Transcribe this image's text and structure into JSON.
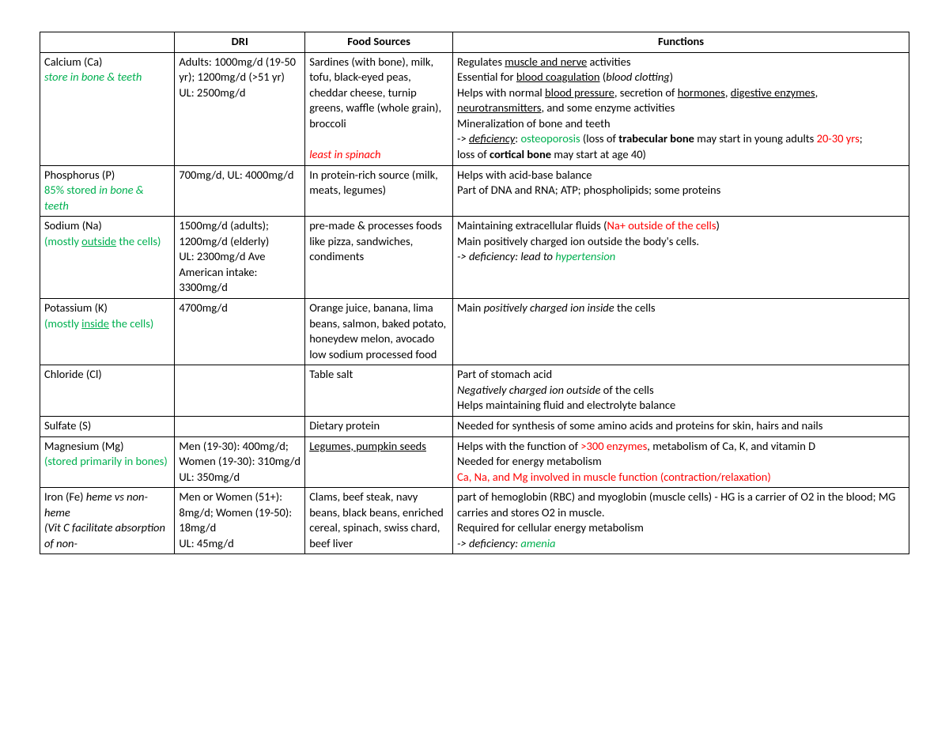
{
  "table": {
    "columns": [
      "",
      "DRI",
      "Food Sources",
      "Functions"
    ],
    "column_widths_pct": [
      15.5,
      15,
      17,
      52.5
    ],
    "border_color": "#000000",
    "font_family": "Calibri",
    "font_size_pt": 11,
    "colors": {
      "green": "#00b050",
      "red": "#ff0000",
      "black": "#000000"
    },
    "rows": [
      {
        "mineral": [
          {
            "t": "Calcium (Ca)"
          },
          {
            "br": true
          },
          {
            "t": "store in bone & teeth",
            "cls": "green i"
          }
        ],
        "dri": [
          {
            "t": "Adults: 1000mg/d (19-50 yr); 1200mg/d (>51 yr)"
          },
          {
            "br": true
          },
          {
            "t": "UL: 2500mg/d"
          }
        ],
        "sources": [
          {
            "t": "Sardines (with bone), milk, tofu, black-eyed peas, cheddar cheese, turnip greens, waffle (whole grain), broccoli"
          },
          {
            "br": true
          },
          {
            "br": true
          },
          {
            "t": "least in spinach",
            "cls": "red i"
          }
        ],
        "functions": [
          {
            "t": "Regulates "
          },
          {
            "t": "muscle and nerve",
            "cls": "u"
          },
          {
            "t": " activities"
          },
          {
            "br": true
          },
          {
            "t": "Essential for "
          },
          {
            "t": "blood coagulation",
            "cls": "u"
          },
          {
            "t": " ("
          },
          {
            "t": "blood clotting",
            "cls": "i"
          },
          {
            "t": ")"
          },
          {
            "br": true
          },
          {
            "t": "Helps with normal "
          },
          {
            "t": "blood pressure",
            "cls": "u"
          },
          {
            "t": ", secretion of "
          },
          {
            "t": "hormones",
            "cls": "u"
          },
          {
            "t": ", "
          },
          {
            "t": "digestive enzymes",
            "cls": "u"
          },
          {
            "t": ", "
          },
          {
            "t": "neurotransmitters",
            "cls": "u"
          },
          {
            "t": ", and some enzyme activities"
          },
          {
            "br": true
          },
          {
            "t": "Mineralization of bone and teeth"
          },
          {
            "br": true
          },
          {
            "t": "-> "
          },
          {
            "t": "deficiency",
            "cls": "ui"
          },
          {
            "t": ": "
          },
          {
            "t": "osteoporosis",
            "cls": "green"
          },
          {
            "t": " (loss of "
          },
          {
            "t": "trabecular bone",
            "cls": "b"
          },
          {
            "t": " may start in young adults "
          },
          {
            "t": "20-30 yrs",
            "cls": "red"
          },
          {
            "t": ";"
          },
          {
            "br": true
          },
          {
            "t": "loss of "
          },
          {
            "t": "cortical bone",
            "cls": "b"
          },
          {
            "t": " may start at age 40)"
          }
        ]
      },
      {
        "mineral": [
          {
            "t": "Phosphorus (P)"
          },
          {
            "br": true
          },
          {
            "t": "85% stored ",
            "cls": "green"
          },
          {
            "t": "in bone & teeth",
            "cls": "green i"
          }
        ],
        "dri": [
          {
            "t": "700mg/d, UL: 4000mg/d"
          }
        ],
        "sources": [
          {
            "t": "In protein-rich source (milk, meats, legumes)"
          }
        ],
        "functions": [
          {
            "t": "Helps with acid-base balance"
          },
          {
            "br": true
          },
          {
            "t": "Part of DNA and RNA; ATP; phospholipids; some proteins"
          }
        ]
      },
      {
        "mineral": [
          {
            "t": "Sodium (Na)"
          },
          {
            "br": true
          },
          {
            "t": "(mostly ",
            "cls": "green"
          },
          {
            "t": "outside",
            "cls": "green u"
          },
          {
            "t": " the cells)",
            "cls": "green"
          }
        ],
        "dri": [
          {
            "t": "1500mg/d (adults); 1200mg/d (elderly)"
          },
          {
            "br": true
          },
          {
            "t": "UL: 2300mg/d    Ave American intake: 3300mg/d"
          }
        ],
        "sources": [
          {
            "t": "pre-made & processes foods like pizza, sandwiches, condiments"
          }
        ],
        "functions": [
          {
            "t": "Maintaining extracellular fluids ("
          },
          {
            "t": "Na+ outside of the cells",
            "cls": "red"
          },
          {
            "t": ")"
          },
          {
            "br": true
          },
          {
            "t": "Main positively charged ion outside the body's cells."
          },
          {
            "br": true
          },
          {
            "t": "-> deficiency:  lead to ",
            "cls": "i"
          },
          {
            "t": "hypertension",
            "cls": "green i"
          }
        ]
      },
      {
        "mineral": [
          {
            "t": "Potassium (K)"
          },
          {
            "br": true
          },
          {
            "t": "(mostly ",
            "cls": "green"
          },
          {
            "t": "inside",
            "cls": "green u"
          },
          {
            "t": " the cells)",
            "cls": "green"
          }
        ],
        "dri": [
          {
            "t": "4700mg/d"
          }
        ],
        "sources": [
          {
            "t": "Orange juice, banana, lima beans, salmon, baked potato, honeydew melon, avocado"
          },
          {
            "br": true
          },
          {
            "t": "low sodium processed food"
          }
        ],
        "functions": [
          {
            "t": "Main "
          },
          {
            "t": "positively charged ion inside",
            "cls": "i"
          },
          {
            "t": " the cells"
          }
        ]
      },
      {
        "mineral": [
          {
            "t": "Chloride (Cl)"
          }
        ],
        "dri": [],
        "sources": [
          {
            "t": "Table salt"
          }
        ],
        "functions": [
          {
            "t": "Part of stomach acid"
          },
          {
            "br": true
          },
          {
            "t": "Negatively charged ion outside",
            "cls": "i"
          },
          {
            "t": " of the cells"
          },
          {
            "br": true
          },
          {
            "t": "Helps maintaining fluid and electrolyte balance"
          }
        ]
      },
      {
        "mineral": [
          {
            "t": "Sulfate (S)"
          }
        ],
        "dri": [],
        "sources": [
          {
            "t": "Dietary protein"
          }
        ],
        "functions": [
          {
            "t": "Needed for synthesis of some amino acids and proteins for skin, hairs and nails"
          }
        ]
      },
      {
        "mineral": [
          {
            "t": "Magnesium (Mg)"
          },
          {
            "br": true
          },
          {
            "t": "(stored primarily in bones)",
            "cls": "green"
          }
        ],
        "dri": [
          {
            "t": "Men (19-30): 400mg/d; Women (19-30): 310mg/d"
          },
          {
            "br": true
          },
          {
            "t": "UL: 350mg/d"
          }
        ],
        "sources": [
          {
            "t": "Legumes, pumpkin seeds",
            "cls": "u"
          }
        ],
        "functions": [
          {
            "t": "Helps with the function of "
          },
          {
            "t": ">300 enzymes",
            "cls": "red"
          },
          {
            "t": ", metabolism of Ca, K, and vitamin D"
          },
          {
            "br": true
          },
          {
            "t": "Needed for energy metabolism"
          },
          {
            "br": true
          },
          {
            "t": "Ca, Na, and Mg involved in muscle function (contraction/relaxation)",
            "cls": "red"
          }
        ]
      },
      {
        "mineral": [
          {
            "t": "Iron (Fe) "
          },
          {
            "t": "heme vs non-heme",
            "cls": "i"
          },
          {
            "br": true
          },
          {
            "t": "(Vit C facilitate absorption of non-",
            "cls": "i"
          }
        ],
        "dri": [
          {
            "t": "Men or Women (51+): 8mg/d; Women (19-50): 18mg/d"
          },
          {
            "br": true
          },
          {
            "t": "UL: 45mg/d"
          }
        ],
        "sources": [
          {
            "t": "Clams, beef steak, navy beans, black beans, enriched cereal, spinach, swiss chard, beef liver"
          }
        ],
        "functions": [
          {
            "t": "part of hemoglobin (RBC) and myoglobin (muscle cells) - HG is a carrier of O2 in the blood; MG carries and stores O2 in muscle."
          },
          {
            "br": true
          },
          {
            "t": "Required for cellular energy metabolism"
          },
          {
            "br": true
          },
          {
            "t": "-> deficiency: ",
            "cls": "i"
          },
          {
            "t": "amenia",
            "cls": "green i"
          }
        ]
      }
    ]
  }
}
